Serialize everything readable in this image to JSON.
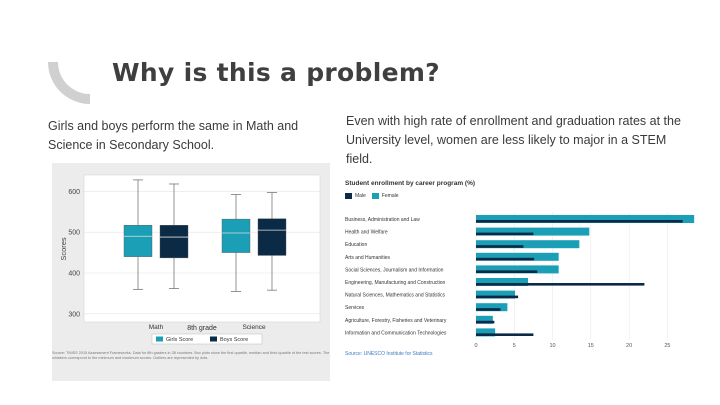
{
  "slide": {
    "title": "Why is this a problem?",
    "left_text": "Girls and boys perform the same in Math and Science in Secondary School.",
    "right_text": "Even with high rate of enrollment and graduation rates at the University level, women are less likely to major in a STEM field."
  },
  "colors": {
    "accent_dark": "#0a2a45",
    "accent_teal": "#1b9fb6",
    "deco_gray": "#d0d0d0"
  },
  "chart_data": [
    {
      "type": "box",
      "title": "",
      "xlabel": "8th grade",
      "ylabel": "Scores",
      "yticks": [
        300,
        400,
        500,
        600
      ],
      "ylim": [
        280,
        640
      ],
      "groups": [
        "Math",
        "Science"
      ],
      "series": [
        {
          "name": "Girls Score",
          "color": "#1b9fb6",
          "boxes": [
            {
              "group": "Math",
              "low": 360,
              "q1": 440,
              "median": 490,
              "q3": 517,
              "high": 628
            },
            {
              "group": "Science",
              "low": 355,
              "q1": 450,
              "median": 498,
              "q3": 532,
              "high": 592
            }
          ]
        },
        {
          "name": "Boys Score",
          "color": "#0a2a45",
          "boxes": [
            {
              "group": "Math",
              "low": 362,
              "q1": 437,
              "median": 488,
              "q3": 517,
              "high": 618
            },
            {
              "group": "Science",
              "low": 358,
              "q1": 443,
              "median": 505,
              "q3": 533,
              "high": 597
            }
          ]
        }
      ],
      "caption": "Source: TIMSS 2015 Assessment Frameworks. Data for 8th graders in 38 countries. Box plots show the first quartile, median and third quartile of the test scores. The whiskers correspond to the minimum and maximum scores. Outliers are represented by dots."
    },
    {
      "type": "bar",
      "orientation": "horizontal",
      "title": "Student enrollment by career program (%)",
      "categories": [
        "Business, Administration and Law",
        "Health and Welfare",
        "Education",
        "Arts and Humanities",
        "Social Sciences, Journalism and Information",
        "Engineering, Manufacturing and Construction",
        "Natural Sciences, Mathematics and Statistics",
        "Services",
        "Agriculture, Forestry, Fisheries and Veterinary",
        "Information and Communication Technologies"
      ],
      "series": [
        {
          "name": "Male",
          "color": "#0a2a45",
          "values": [
            27,
            7.5,
            6.2,
            7.6,
            8,
            22,
            5.5,
            3.2,
            2.4,
            7.5
          ]
        },
        {
          "name": "Female",
          "color": "#1b9fb6",
          "values": [
            28.5,
            14.8,
            13.5,
            10.8,
            10.8,
            6.8,
            5.1,
            4.1,
            2.2,
            2.5
          ]
        }
      ],
      "xticks": [
        0,
        5,
        10,
        15,
        20,
        25
      ],
      "xlim": [
        0,
        29
      ],
      "source": "Source: UNESCO Institute for Statistics"
    }
  ]
}
